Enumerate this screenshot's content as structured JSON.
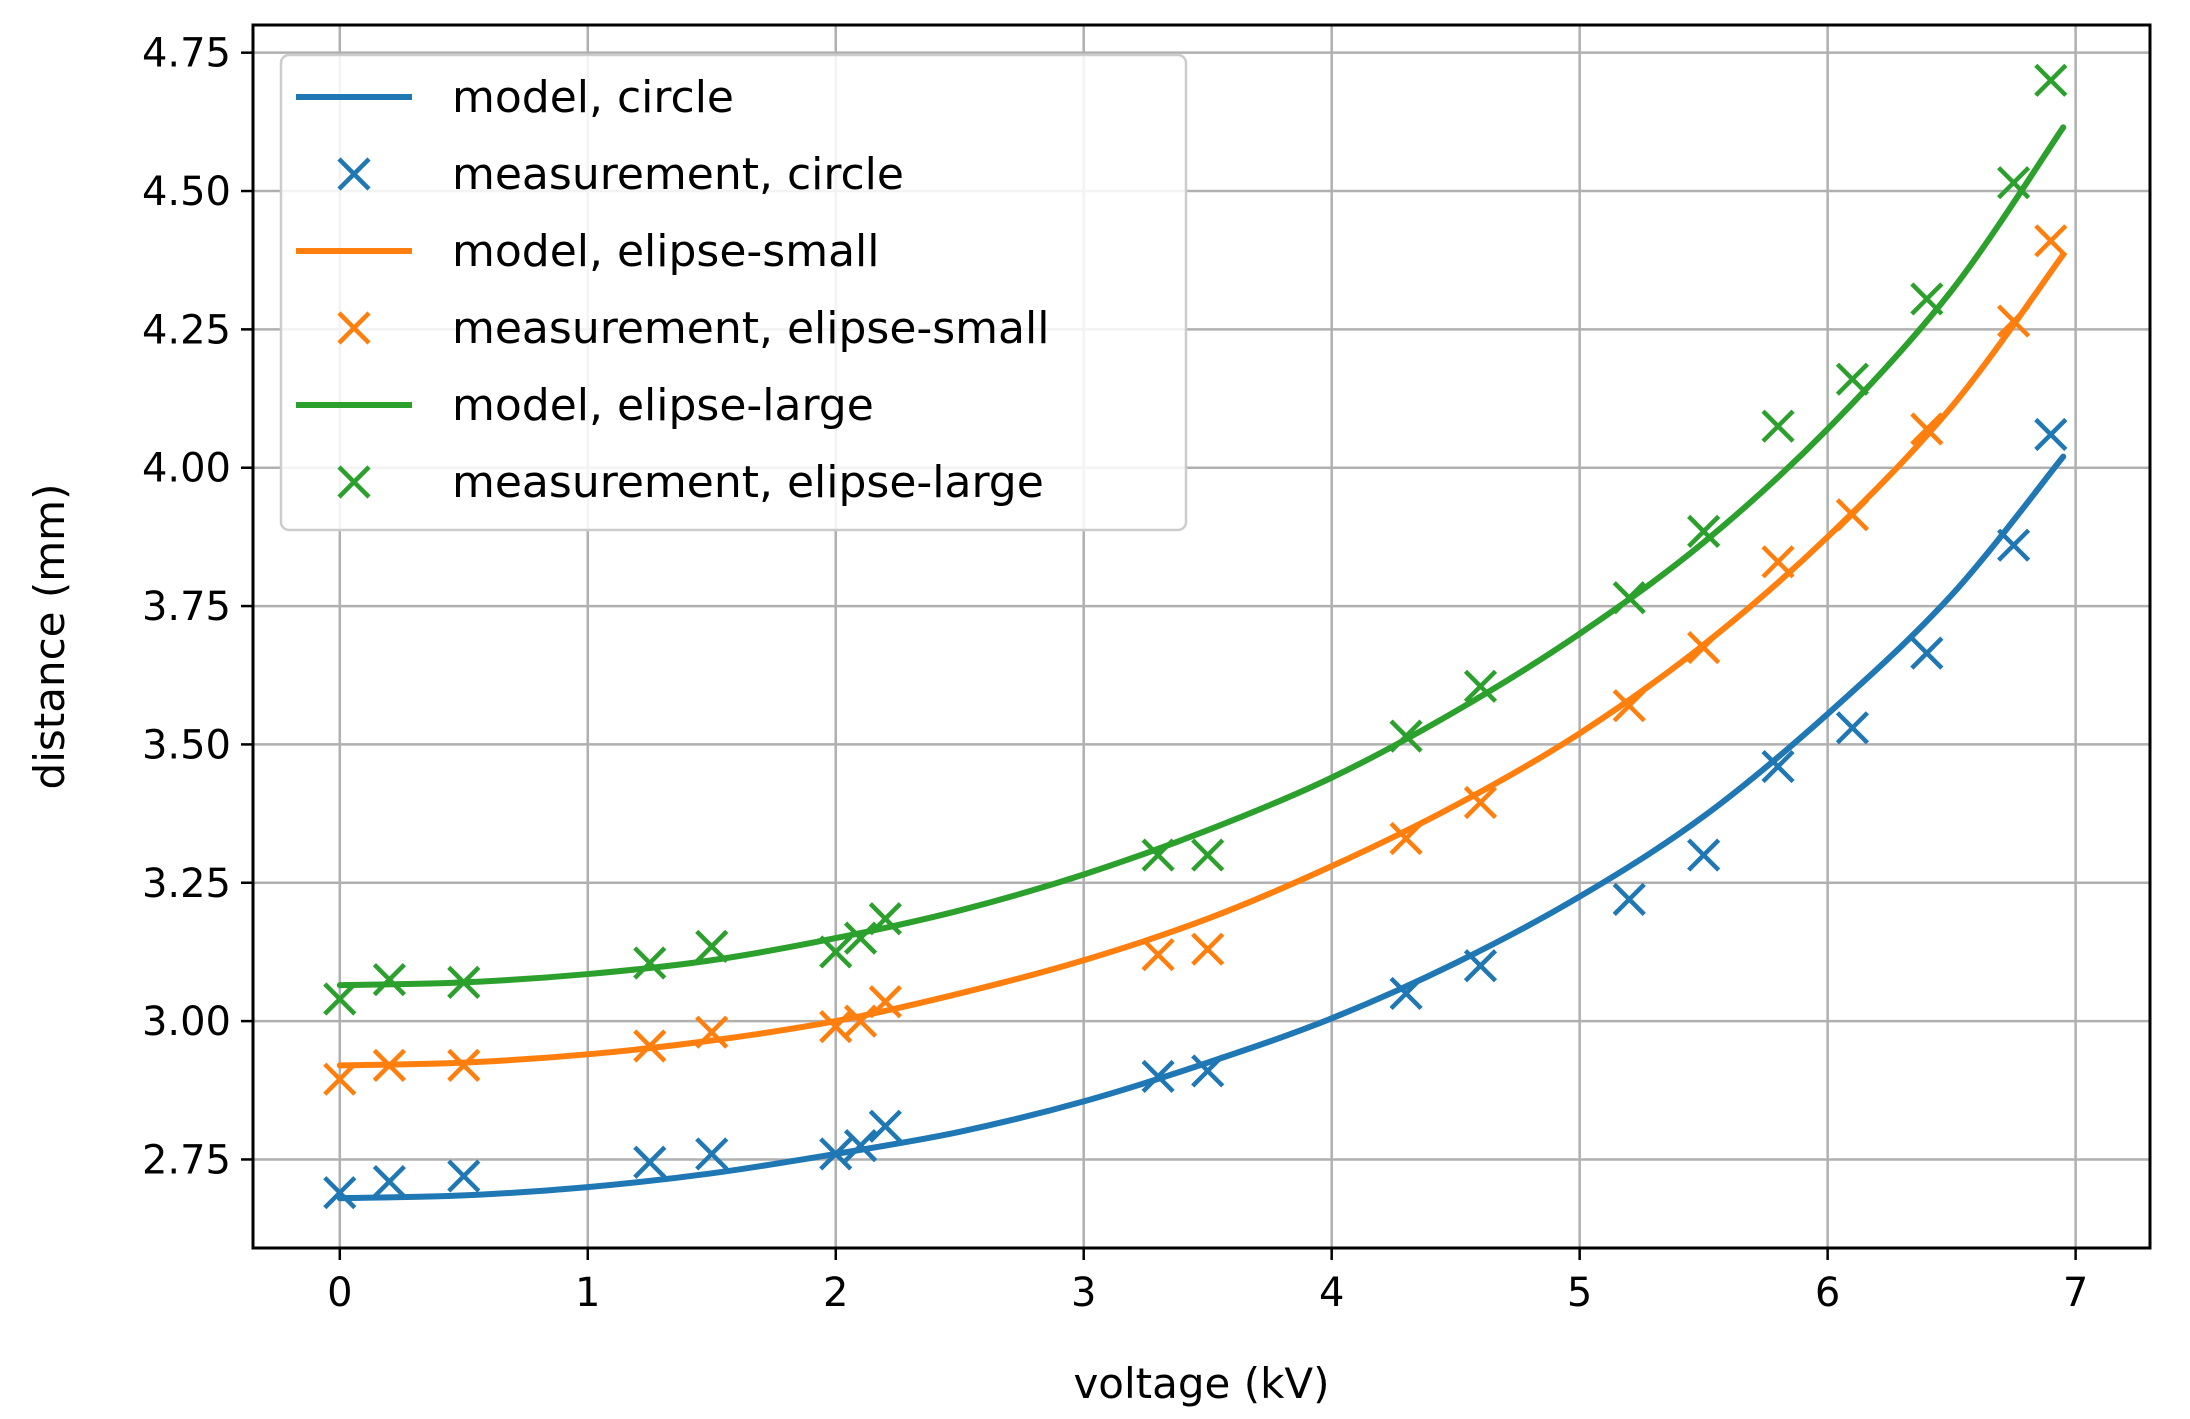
{
  "chart_data": {
    "type": "line",
    "title": "",
    "xlabel": "voltage (kV)",
    "ylabel": "distance (mm)",
    "xlim": [
      -0.35,
      7.3
    ],
    "ylim": [
      2.59,
      4.8
    ],
    "grid": true,
    "xticks": [
      0,
      1,
      2,
      3,
      4,
      5,
      6,
      7
    ],
    "xtick_labels": [
      "0",
      "1",
      "2",
      "3",
      "4",
      "5",
      "6",
      "7"
    ],
    "yticks": [
      2.75,
      3.0,
      3.25,
      3.5,
      3.75,
      4.0,
      4.25,
      4.5,
      4.75
    ],
    "ytick_labels": [
      "2.75",
      "3.00",
      "3.25",
      "3.50",
      "3.75",
      "4.00",
      "4.25",
      "4.50",
      "4.75"
    ],
    "legend_position": "top-left",
    "legend": [
      "model, circle",
      "measurement, circle",
      "model, elipse-small",
      "measurement, elipse-small",
      "model, elipse-large",
      "measurement, elipse-large"
    ],
    "series": [
      {
        "name": "circle",
        "color": "#1f77b4",
        "model": {
          "x": [
            0,
            0.5,
            1.0,
            1.5,
            2.0,
            2.5,
            3.0,
            3.5,
            4.0,
            4.5,
            5.0,
            5.5,
            6.0,
            6.5,
            6.95
          ],
          "y": [
            2.68,
            2.685,
            2.7,
            2.725,
            2.76,
            2.8,
            2.855,
            2.925,
            3.005,
            3.105,
            3.225,
            3.37,
            3.555,
            3.77,
            4.02
          ]
        },
        "measurement": {
          "x": [
            0,
            0.2,
            0.5,
            1.25,
            1.5,
            2.0,
            2.1,
            2.2,
            3.3,
            3.5,
            4.3,
            4.6,
            5.2,
            5.5,
            5.8,
            6.1,
            6.4,
            6.75,
            6.9
          ],
          "y": [
            2.69,
            2.71,
            2.72,
            2.745,
            2.76,
            2.76,
            2.775,
            2.81,
            2.9,
            2.91,
            3.05,
            3.1,
            3.22,
            3.3,
            3.46,
            3.53,
            3.665,
            3.86,
            4.06
          ]
        }
      },
      {
        "name": "elipse-small",
        "color": "#ff7f0e",
        "model": {
          "x": [
            0,
            0.5,
            1.0,
            1.5,
            2.0,
            2.5,
            3.0,
            3.5,
            4.0,
            4.5,
            5.0,
            5.5,
            6.0,
            6.5,
            6.95
          ],
          "y": [
            2.92,
            2.925,
            2.94,
            2.965,
            3.0,
            3.05,
            3.11,
            3.185,
            3.28,
            3.39,
            3.52,
            3.68,
            3.875,
            4.11,
            4.385
          ]
        },
        "measurement": {
          "x": [
            0,
            0.2,
            0.5,
            1.25,
            1.5,
            2.0,
            2.1,
            2.2,
            3.3,
            3.5,
            4.3,
            4.6,
            5.2,
            5.5,
            5.8,
            6.1,
            6.4,
            6.75,
            6.9
          ],
          "y": [
            2.895,
            2.92,
            2.92,
            2.955,
            2.98,
            2.99,
            3.0,
            3.035,
            3.12,
            3.13,
            3.33,
            3.395,
            3.57,
            3.675,
            3.83,
            3.915,
            4.07,
            4.265,
            4.41
          ]
        }
      },
      {
        "name": "elipse-large",
        "color": "#2ca02c",
        "model": {
          "x": [
            0,
            0.5,
            1.0,
            1.5,
            2.0,
            2.5,
            3.0,
            3.5,
            4.0,
            4.5,
            5.0,
            5.5,
            6.0,
            6.5,
            6.95
          ],
          "y": [
            3.065,
            3.07,
            3.085,
            3.11,
            3.15,
            3.2,
            3.265,
            3.345,
            3.44,
            3.56,
            3.7,
            3.865,
            4.07,
            4.32,
            4.615
          ]
        },
        "measurement": {
          "x": [
            0,
            0.2,
            0.5,
            1.25,
            1.5,
            2.0,
            2.1,
            2.2,
            3.3,
            3.5,
            4.3,
            4.6,
            5.2,
            5.5,
            5.8,
            6.1,
            6.4,
            6.75,
            6.9
          ],
          "y": [
            3.04,
            3.075,
            3.07,
            3.105,
            3.135,
            3.125,
            3.15,
            3.185,
            3.3,
            3.3,
            3.515,
            3.605,
            3.765,
            3.885,
            4.075,
            4.16,
            4.305,
            4.515,
            4.7
          ]
        }
      }
    ]
  }
}
